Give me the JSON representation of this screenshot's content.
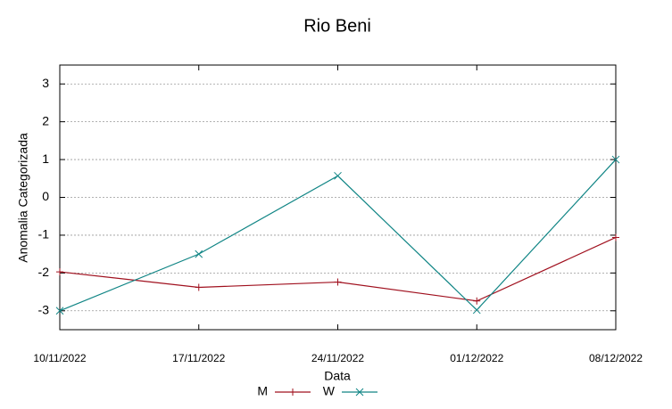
{
  "chart_data": {
    "type": "line",
    "title": "Rio Beni",
    "x_label": "Data",
    "y_label": "Anomalia Categorizada",
    "x": [
      "10/11/2022",
      "17/11/2022",
      "24/11/2022",
      "01/12/2022",
      "08/12/2022"
    ],
    "series": [
      {
        "name": "M",
        "color": "#a0101e",
        "marker": "plus",
        "values": [
          -1.97,
          -2.38,
          -2.24,
          -2.74,
          -1.06
        ]
      },
      {
        "name": "W",
        "color": "#108585",
        "marker": "cross",
        "values": [
          -3.0,
          -1.5,
          0.57,
          -2.98,
          1.0
        ]
      }
    ],
    "ylim": [
      -3.5,
      3.5
    ],
    "yticks": [
      -3,
      -2,
      -1,
      0,
      1,
      2,
      3
    ],
    "grid": true
  }
}
